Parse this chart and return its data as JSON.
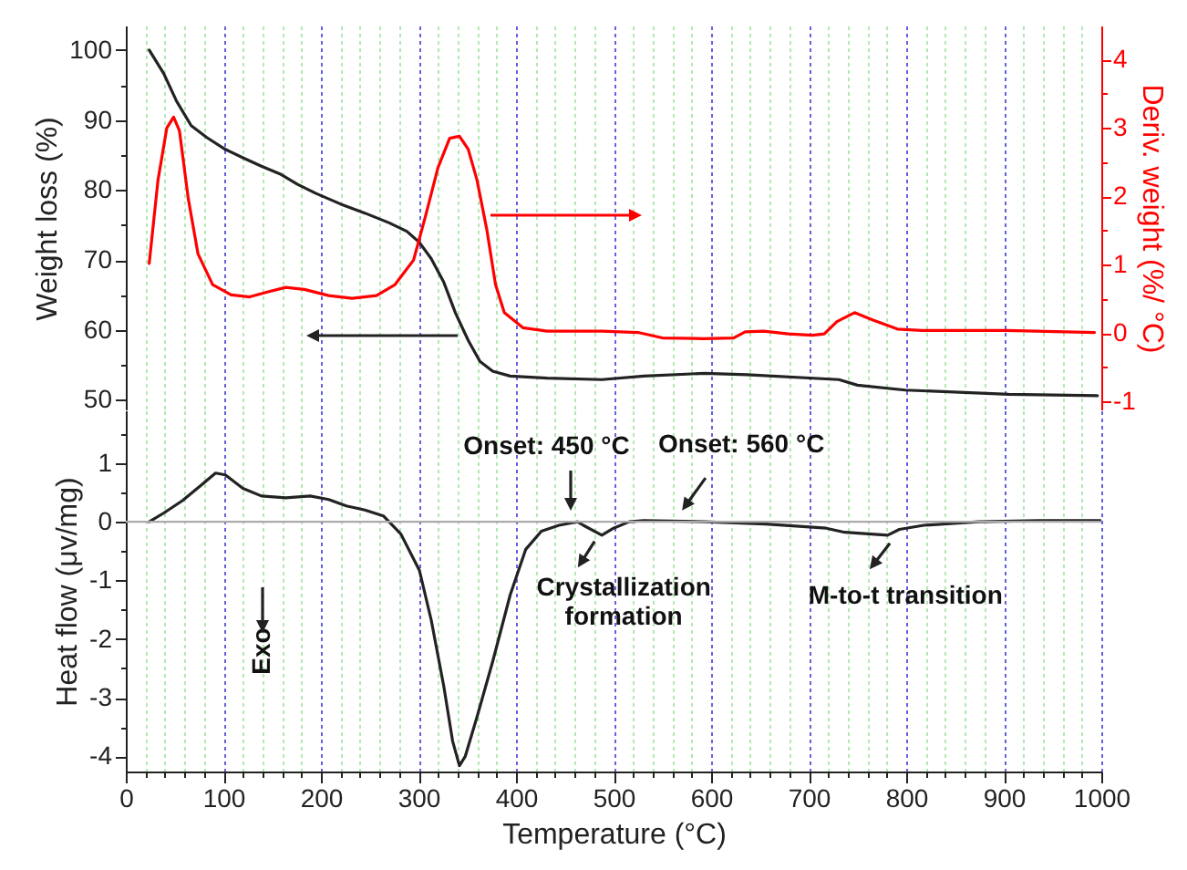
{
  "chart_data": [
    {
      "type": "line",
      "ylabel": "Weight loss (%)",
      "y2label": "Deriv. weight (%/ °C)",
      "xlim": [
        0,
        1000
      ],
      "ylim": [
        48.5,
        103.5
      ],
      "y2lim": [
        -1.13,
        4.5
      ],
      "grid": "x",
      "tick_labels": "y",
      "xticks": [
        0,
        {
          "value": 20,
          "label": null
        },
        {
          "value": 40,
          "label": null
        },
        {
          "value": 60,
          "label": null
        },
        {
          "value": 80,
          "label": null
        },
        100,
        {
          "value": 120,
          "label": null
        },
        {
          "value": 140,
          "label": null
        },
        {
          "value": 160,
          "label": null
        },
        {
          "value": 180,
          "label": null
        },
        200,
        {
          "value": 220,
          "label": null
        },
        {
          "value": 240,
          "label": null
        },
        {
          "value": 260,
          "label": null
        },
        {
          "value": 280,
          "label": null
        },
        300,
        {
          "value": 320,
          "label": null
        },
        {
          "value": 340,
          "label": null
        },
        {
          "value": 360,
          "label": null
        },
        {
          "value": 380,
          "label": null
        },
        400,
        {
          "value": 420,
          "label": null
        },
        {
          "value": 440,
          "label": null
        },
        {
          "value": 460,
          "label": null
        },
        {
          "value": 480,
          "label": null
        },
        500,
        {
          "value": 520,
          "label": null
        },
        {
          "value": 540,
          "label": null
        },
        {
          "value": 560,
          "label": null
        },
        {
          "value": 580,
          "label": null
        },
        600,
        {
          "value": 620,
          "label": null
        },
        {
          "value": 640,
          "label": null
        },
        {
          "value": 660,
          "label": null
        },
        {
          "value": 680,
          "label": null
        },
        700,
        {
          "value": 720,
          "label": null
        },
        {
          "value": 740,
          "label": null
        },
        {
          "value": 760,
          "label": null
        },
        {
          "value": 780,
          "label": null
        },
        800,
        {
          "value": 820,
          "label": null
        },
        {
          "value": 840,
          "label": null
        },
        {
          "value": 860,
          "label": null
        },
        {
          "value": 880,
          "label": null
        },
        900,
        {
          "value": 920,
          "label": null
        },
        {
          "value": 940,
          "label": null
        },
        {
          "value": 960,
          "label": null
        },
        {
          "value": 980,
          "label": null
        },
        1000
      ],
      "yticks": [
        50,
        {
          "value": 55,
          "label": null
        },
        60,
        {
          "value": 65,
          "label": null
        },
        70,
        {
          "value": 75,
          "label": null
        },
        80,
        {
          "value": 85,
          "label": null
        },
        90,
        {
          "value": 95,
          "label": null
        },
        100
      ],
      "y2ticks": [
        -1,
        {
          "value": -0.5,
          "label": null
        },
        0,
        {
          "value": 0.5,
          "label": null
        },
        1,
        {
          "value": 1.5,
          "label": null
        },
        2,
        {
          "value": 2.5,
          "label": null
        },
        3,
        {
          "value": 3.5,
          "label": null
        },
        4
      ],
      "series": [
        {
          "color": "#222222",
          "x": [
            24,
            39,
            52,
            67,
            83,
            102,
            120,
            139,
            158,
            176,
            195,
            220,
            245,
            270,
            288,
            301,
            313,
            326,
            338,
            351,
            363,
            376,
            394,
            432,
            488,
            531,
            593,
            637,
            731,
            750,
            799,
            905,
            996
          ],
          "values": [
            100,
            96.6,
            92.7,
            89.2,
            87.5,
            85.8,
            84.6,
            83.4,
            82.3,
            80.8,
            79.5,
            78.0,
            76.7,
            75.3,
            74.1,
            72.5,
            70.2,
            66.8,
            62.4,
            58.5,
            55.5,
            54.1,
            53.4,
            53.1,
            52.9,
            53.4,
            53.8,
            53.6,
            52.9,
            52.1,
            51.4,
            50.8,
            50.6
          ]
        },
        {
          "axis": "y2",
          "color": "#ff0000",
          "x": [
            24,
            33,
            42,
            49,
            55,
            64,
            74,
            89,
            108,
            127,
            145,
            164,
            183,
            208,
            232,
            257,
            276,
            295,
            307,
            320,
            332,
            342,
            351,
            360,
            370,
            379,
            388,
            407,
            432,
            488,
            525,
            550,
            592,
            623,
            635,
            654,
            679,
            704,
            716,
            729,
            747,
            766,
            791,
            816,
            903,
            993
          ],
          "values": [
            1.02,
            2.24,
            3.0,
            3.16,
            2.96,
            1.97,
            1.16,
            0.71,
            0.56,
            0.53,
            0.6,
            0.67,
            0.64,
            0.55,
            0.51,
            0.55,
            0.71,
            1.07,
            1.7,
            2.42,
            2.85,
            2.88,
            2.69,
            2.24,
            1.52,
            0.71,
            0.3,
            0.08,
            0.03,
            0.03,
            0.01,
            -0.07,
            -0.08,
            -0.07,
            0.02,
            0.03,
            -0.01,
            -0.03,
            -0.01,
            0.17,
            0.3,
            0.19,
            0.06,
            0.04,
            0.04,
            0.01
          ]
        }
      ]
    },
    {
      "type": "line",
      "xlabel": "Temperature (°C)",
      "ylabel": "Heat flow (μv/mg)",
      "xlim": [
        0,
        1000
      ],
      "ylim": [
        -4.26,
        1.9
      ],
      "grid": "x",
      "xticks": [
        0,
        {
          "value": 20,
          "label": null
        },
        {
          "value": 40,
          "label": null
        },
        {
          "value": 60,
          "label": null
        },
        {
          "value": 80,
          "label": null
        },
        100,
        {
          "value": 120,
          "label": null
        },
        {
          "value": 140,
          "label": null
        },
        {
          "value": 160,
          "label": null
        },
        {
          "value": 180,
          "label": null
        },
        200,
        {
          "value": 220,
          "label": null
        },
        {
          "value": 240,
          "label": null
        },
        {
          "value": 260,
          "label": null
        },
        {
          "value": 280,
          "label": null
        },
        300,
        {
          "value": 320,
          "label": null
        },
        {
          "value": 340,
          "label": null
        },
        {
          "value": 360,
          "label": null
        },
        {
          "value": 380,
          "label": null
        },
        400,
        {
          "value": 420,
          "label": null
        },
        {
          "value": 440,
          "label": null
        },
        {
          "value": 460,
          "label": null
        },
        {
          "value": 480,
          "label": null
        },
        500,
        {
          "value": 520,
          "label": null
        },
        {
          "value": 540,
          "label": null
        },
        {
          "value": 560,
          "label": null
        },
        {
          "value": 580,
          "label": null
        },
        600,
        {
          "value": 620,
          "label": null
        },
        {
          "value": 640,
          "label": null
        },
        {
          "value": 660,
          "label": null
        },
        {
          "value": 680,
          "label": null
        },
        700,
        {
          "value": 720,
          "label": null
        },
        {
          "value": 740,
          "label": null
        },
        {
          "value": 760,
          "label": null
        },
        {
          "value": 780,
          "label": null
        },
        800,
        {
          "value": 820,
          "label": null
        },
        {
          "value": 840,
          "label": null
        },
        {
          "value": 860,
          "label": null
        },
        {
          "value": 880,
          "label": null
        },
        900,
        {
          "value": 920,
          "label": null
        },
        {
          "value": 940,
          "label": null
        },
        {
          "value": 960,
          "label": null
        },
        {
          "value": 980,
          "label": null
        },
        1000
      ],
      "yticks": [
        -4,
        {
          "value": -3.5,
          "label": null
        },
        -3,
        {
          "value": -2.5,
          "label": null
        },
        -2,
        {
          "value": -1.5,
          "label": null
        },
        -1,
        {
          "value": -0.5,
          "label": null
        },
        0,
        {
          "value": 0.5,
          "label": null
        },
        1,
        {
          "value": 1.5,
          "label": null
        }
      ],
      "ref_lines": [
        {
          "axis": "y",
          "value": 0,
          "color": "#aaaaaa"
        }
      ],
      "annotations": [
        {
          "text": "Onset: 450 °C",
          "x": 450,
          "y": 0
        },
        {
          "text": "Onset: 560 °C",
          "x": 560,
          "y": 0
        },
        {
          "text": "Crystallization formation",
          "x": 488,
          "y": -0.23
        },
        {
          "text": "M-to-t transition",
          "x": 790,
          "y": -0.22
        },
        "Exo"
      ],
      "series": [
        {
          "color": "#222222",
          "x": [
            24,
            39,
            58,
            77,
            92,
            102,
            120,
            139,
            164,
            189,
            208,
            226,
            245,
            264,
            282,
            301,
            313,
            326,
            335,
            342,
            348,
            360,
            376,
            394,
            410,
            426,
            444,
            463,
            469,
            488,
            500,
            516,
            531,
            594,
            656,
            718,
            737,
            781,
            793,
            818,
            874,
            936,
            999
          ],
          "values": [
            0.0,
            0.15,
            0.36,
            0.62,
            0.83,
            0.8,
            0.57,
            0.44,
            0.41,
            0.44,
            0.38,
            0.27,
            0.2,
            0.1,
            -0.21,
            -0.83,
            -1.67,
            -2.81,
            -3.74,
            -4.16,
            -4.0,
            -3.33,
            -2.39,
            -1.25,
            -0.47,
            -0.16,
            -0.06,
            0.0,
            -0.06,
            -0.23,
            -0.11,
            0.0,
            0.02,
            0.0,
            -0.04,
            -0.11,
            -0.18,
            -0.23,
            -0.13,
            -0.06,
            0.0,
            0.02,
            0.02
          ]
        }
      ]
    }
  ]
}
